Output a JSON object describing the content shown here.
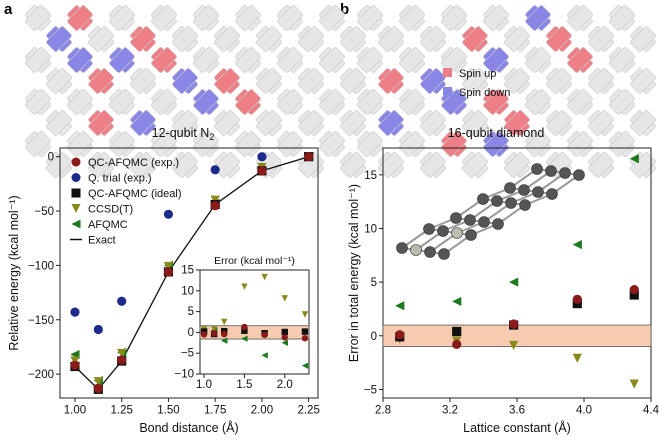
{
  "figure": {
    "panel_a": "a",
    "panel_b": "b",
    "caption_a": "12-qubit N",
    "caption_a_sub": "2",
    "caption_b": "16-qubit diamond",
    "lattice_legend": {
      "spin_up": "Spin up",
      "spin_down": "Spin down"
    },
    "colors": {
      "spin_up": "#ef7f86",
      "spin_down": "#8a86e6",
      "inactive": "#e6e6e6",
      "link": "#cccccc",
      "qc_afqmc_exp": "#8b1a1a",
      "q_trial": "#1c2a8c",
      "qc_afqmc_ideal": "#111111",
      "ccsd_t": "#8a8a1a",
      "afqmc": "#1e7a1e",
      "exact": "#111111",
      "error_band": "#f7cbb0"
    }
  },
  "chart_data": [
    {
      "type": "scatter",
      "panel": "a",
      "xlabel": "Bond distance (Å)",
      "ylabel": "Relative energy (kcal mol⁻¹)",
      "xlim": [
        0.92,
        2.3
      ],
      "ylim": [
        -222,
        8
      ],
      "xticks": [
        1.0,
        1.25,
        1.5,
        1.75,
        2.0,
        2.25
      ],
      "xtick_labels": [
        "1.00",
        "1.25",
        "1.50",
        "1.75",
        "2.00",
        "2.25"
      ],
      "yticks": [
        0,
        -50,
        -100,
        -150,
        -200
      ],
      "ytick_labels": [
        "0",
        "−50",
        "−100",
        "−150",
        "−200"
      ],
      "legend": [
        "QC-AFQMC (exp.)",
        "Q. trial (exp.)",
        "QC-AFQMC (ideal)",
        "CCSD(T)",
        "AFQMC",
        "Exact"
      ],
      "series": [
        {
          "name": "QC-AFQMC (exp.)",
          "marker": "circle",
          "x": [
            1.0,
            1.125,
            1.25,
            1.5,
            1.75,
            2.0,
            2.25
          ],
          "y": [
            -192,
            -213,
            -187,
            -106,
            -45,
            -13,
            0
          ]
        },
        {
          "name": "Q. trial (exp.)",
          "marker": "circle",
          "x": [
            1.0,
            1.125,
            1.25,
            1.5,
            1.75,
            2.0,
            2.25
          ],
          "y": [
            -143,
            -159,
            -133,
            -53,
            -12,
            0,
            0
          ]
        },
        {
          "name": "QC-AFQMC (ideal)",
          "marker": "square",
          "x": [
            1.0,
            1.125,
            1.25,
            1.5,
            1.75,
            2.0,
            2.25
          ],
          "y": [
            -193,
            -214,
            -188,
            -106,
            -44,
            -13,
            0
          ]
        },
        {
          "name": "CCSD(T)",
          "marker": "triangle-down",
          "x": [
            1.0,
            1.125,
            1.25,
            1.5,
            1.75,
            2.0,
            2.25
          ],
          "y": [
            -188,
            -207,
            -181,
            -101,
            -40,
            -10,
            0
          ]
        },
        {
          "name": "AFQMC",
          "marker": "triangle-left",
          "x": [
            1.0,
            1.125,
            1.25,
            1.5,
            1.75,
            2.0,
            2.25
          ],
          "y": [
            -182,
            -206,
            -180,
            -100,
            -43,
            -13,
            0
          ]
        },
        {
          "name": "Exact",
          "marker": "line",
          "x": [
            1.0,
            1.125,
            1.25,
            1.5,
            1.75,
            2.0,
            2.25
          ],
          "y": [
            -193,
            -214,
            -188,
            -106,
            -44,
            -13,
            0
          ]
        }
      ]
    },
    {
      "type": "scatter",
      "panel": "a-inset",
      "title": "Error (kcal mol⁻¹)",
      "xlim": [
        0.95,
        2.3
      ],
      "ylim": [
        -10,
        15
      ],
      "xticks": [
        1.0,
        1.5,
        2.0
      ],
      "xtick_labels": [
        "1.0",
        "1.5",
        "2.0"
      ],
      "yticks": [
        15,
        10,
        5,
        0,
        -5,
        -10
      ],
      "ytick_labels": [
        "15",
        "10",
        "5",
        "0",
        "−5",
        "−10"
      ],
      "band": [
        -1.6,
        1.6
      ],
      "series": [
        {
          "name": "QC-AFQMC (exp.)",
          "marker": "circle",
          "x": [
            1.0,
            1.125,
            1.25,
            1.5,
            1.75,
            2.0,
            2.25
          ],
          "y": [
            -0.5,
            -0.2,
            -0.4,
            1.3,
            -0.6,
            -1.2,
            -1.4
          ]
        },
        {
          "name": "QC-AFQMC (ideal)",
          "marker": "square",
          "x": [
            1.0,
            1.125,
            1.25,
            1.5,
            1.75,
            2.0,
            2.25
          ],
          "y": [
            0.2,
            -0.4,
            0.3,
            0.4,
            -0.2,
            0.1,
            0.2
          ]
        },
        {
          "name": "CCSD(T)",
          "marker": "triangle-down",
          "x": [
            1.0,
            1.125,
            1.25,
            1.5,
            1.75,
            2.0,
            2.25
          ],
          "y": [
            0.7,
            0.8,
            2.5,
            11.0,
            13.3,
            8.2,
            4.3
          ]
        },
        {
          "name": "AFQMC",
          "marker": "triangle-left",
          "x": [
            1.0,
            1.125,
            1.25,
            1.5,
            1.75,
            2.0,
            2.25
          ],
          "y": [
            0.3,
            0.5,
            -2.0,
            -1.5,
            -5.5,
            -2.5,
            -8.0
          ]
        }
      ]
    },
    {
      "type": "scatter",
      "panel": "b",
      "xlabel": "Lattice constant (Å)",
      "ylabel": "Error in total energy (kcal mol⁻¹)",
      "xlim": [
        2.8,
        4.4
      ],
      "ylim": [
        -5.8,
        17.5
      ],
      "xticks": [
        2.8,
        3.2,
        3.6,
        4.0,
        4.4
      ],
      "xtick_labels": [
        "2.8",
        "3.2",
        "3.6",
        "4.0",
        "4.4"
      ],
      "yticks": [
        15,
        10,
        5,
        0,
        -5
      ],
      "ytick_labels": [
        "15",
        "10",
        "5",
        "0",
        "−5"
      ],
      "band": [
        -1.0,
        1.0
      ],
      "series": [
        {
          "name": "QC-AFQMC (exp.)",
          "marker": "circle",
          "x": [
            2.9,
            3.24,
            3.58,
            3.96,
            4.3
          ],
          "y": [
            0.1,
            -0.8,
            1.1,
            3.4,
            4.3
          ]
        },
        {
          "name": "QC-AFQMC (ideal)",
          "marker": "square",
          "x": [
            2.9,
            3.24,
            3.58,
            3.96,
            4.3
          ],
          "y": [
            -0.1,
            0.4,
            1.0,
            3.0,
            3.8
          ]
        },
        {
          "name": "CCSD(T)",
          "marker": "triangle-down",
          "x": [
            2.9,
            3.24,
            3.58,
            3.96,
            4.3
          ],
          "y": [
            -0.3,
            -0.5,
            -0.9,
            -2.1,
            -4.5
          ]
        },
        {
          "name": "AFQMC",
          "marker": "triangle-left",
          "x": [
            2.9,
            3.24,
            3.58,
            3.96,
            4.3
          ],
          "y": [
            2.8,
            3.2,
            5.0,
            8.5,
            16.5
          ]
        }
      ]
    }
  ]
}
